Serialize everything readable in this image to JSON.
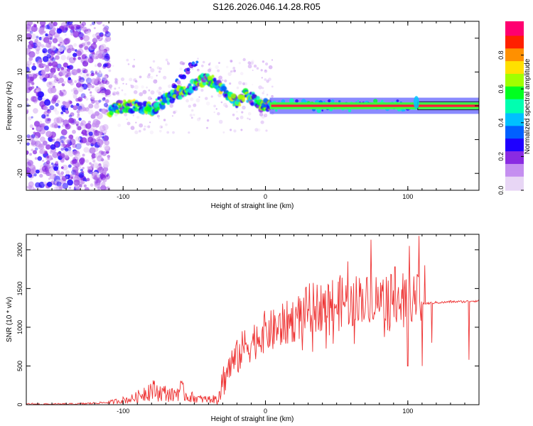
{
  "title": "S126.2026.046.14.28.R05",
  "chart_data": [
    {
      "type": "heatmap",
      "name": "spectrogram",
      "xlabel": "Height of straight line (km)",
      "ylabel": "Frequency (Hz)",
      "xlim": [
        -168,
        150
      ],
      "ylim": [
        -25,
        25
      ],
      "xticks": [
        -100,
        0,
        100
      ],
      "yticks": [
        -20,
        -10,
        0,
        10,
        20
      ],
      "colorbar": {
        "label": "Normalized spectral amplitude",
        "range": [
          0,
          1
        ],
        "ticks": [
          0.0,
          0.2,
          0.4,
          0.6,
          0.8
        ],
        "tick_labels": [
          "0.0",
          "0.2",
          "0.4",
          "0.6",
          "0.8"
        ],
        "colormap": [
          "#e8d6f5",
          "#c58ff0",
          "#8a2be2",
          "#1e00ff",
          "#0060ff",
          "#00c0ff",
          "#00ffb0",
          "#00ff20",
          "#a0ff00",
          "#ffe000",
          "#ff9000",
          "#ff2000",
          "#ff0070"
        ]
      },
      "ridge": [
        {
          "x": -110,
          "y": -2
        },
        {
          "x": -100,
          "y": 0
        },
        {
          "x": -90,
          "y": 0
        },
        {
          "x": -80,
          "y": -1
        },
        {
          "x": -70,
          "y": 2
        },
        {
          "x": -60,
          "y": 4
        },
        {
          "x": -50,
          "y": 6
        },
        {
          "x": -42,
          "y": 8
        },
        {
          "x": -35,
          "y": 7
        },
        {
          "x": -30,
          "y": 5
        },
        {
          "x": -25,
          "y": 2
        },
        {
          "x": -20,
          "y": 1
        },
        {
          "x": -15,
          "y": 3
        },
        {
          "x": -8,
          "y": 2
        },
        {
          "x": -2,
          "y": 0
        },
        {
          "x": 5,
          "y": 0
        },
        {
          "x": 105,
          "y": 0
        },
        {
          "x": 150,
          "y": 0
        }
      ],
      "upper_branch": [
        {
          "x": -65,
          "y": 6
        },
        {
          "x": -58,
          "y": 9
        },
        {
          "x": -52,
          "y": 12
        },
        {
          "x": -48,
          "y": 13
        }
      ]
    },
    {
      "type": "line",
      "name": "snr",
      "xlabel": "Height of straight line (km)",
      "ylabel": "SNR (10 * v/v)",
      "xlim": [
        -168,
        150
      ],
      "ylim": [
        0,
        2200
      ],
      "xticks": [
        -100,
        0,
        100
      ],
      "yticks": [
        0,
        500,
        1000,
        1500,
        2000
      ],
      "color": "#ee3333",
      "series": [
        {
          "x": -168,
          "y": 10
        },
        {
          "x": -150,
          "y": 5
        },
        {
          "x": -130,
          "y": 10
        },
        {
          "x": -110,
          "y": 30
        },
        {
          "x": -100,
          "y": 60
        },
        {
          "x": -95,
          "y": 70
        },
        {
          "x": -90,
          "y": 100
        },
        {
          "x": -85,
          "y": 160
        },
        {
          "x": -80,
          "y": 200
        },
        {
          "x": -75,
          "y": 160
        },
        {
          "x": -70,
          "y": 150
        },
        {
          "x": -65,
          "y": 120
        },
        {
          "x": -60,
          "y": 200
        },
        {
          "x": -55,
          "y": 110
        },
        {
          "x": -50,
          "y": 90
        },
        {
          "x": -45,
          "y": 70
        },
        {
          "x": -40,
          "y": 70
        },
        {
          "x": -35,
          "y": 70
        },
        {
          "x": -30,
          "y": 300
        },
        {
          "x": -25,
          "y": 500
        },
        {
          "x": -20,
          "y": 600
        },
        {
          "x": -15,
          "y": 750
        },
        {
          "x": -10,
          "y": 800
        },
        {
          "x": -5,
          "y": 880
        },
        {
          "x": 0,
          "y": 950
        },
        {
          "x": 5,
          "y": 950
        },
        {
          "x": 10,
          "y": 1000
        },
        {
          "x": 15,
          "y": 1050
        },
        {
          "x": 20,
          "y": 1100
        },
        {
          "x": 25,
          "y": 1150
        },
        {
          "x": 30,
          "y": 1250
        },
        {
          "x": 35,
          "y": 1250
        },
        {
          "x": 40,
          "y": 1280
        },
        {
          "x": 45,
          "y": 1330
        },
        {
          "x": 50,
          "y": 1300
        },
        {
          "x": 55,
          "y": 1350
        },
        {
          "x": 60,
          "y": 1300
        },
        {
          "x": 65,
          "y": 1400
        },
        {
          "x": 70,
          "y": 1350
        },
        {
          "x": 75,
          "y": 1400
        },
        {
          "x": 80,
          "y": 1380
        },
        {
          "x": 85,
          "y": 1400
        },
        {
          "x": 90,
          "y": 1350
        },
        {
          "x": 95,
          "y": 1400
        },
        {
          "x": 100,
          "y": 1350
        },
        {
          "x": 105,
          "y": 1400
        },
        {
          "x": 110,
          "y": 1300
        },
        {
          "x": 115,
          "y": 1310
        },
        {
          "x": 120,
          "y": 1320
        },
        {
          "x": 125,
          "y": 1320
        },
        {
          "x": 130,
          "y": 1330
        },
        {
          "x": 135,
          "y": 1330
        },
        {
          "x": 140,
          "y": 1330
        },
        {
          "x": 145,
          "y": 1340
        },
        {
          "x": 150,
          "y": 1340
        }
      ],
      "spikes": [
        {
          "x": 58,
          "y": 1850
        },
        {
          "x": 63,
          "y": 1100
        },
        {
          "x": 70,
          "y": 1200
        },
        {
          "x": 74,
          "y": 2130
        },
        {
          "x": 80,
          "y": 1200
        },
        {
          "x": 85,
          "y": 1650
        },
        {
          "x": 87,
          "y": 950
        },
        {
          "x": 91,
          "y": 1780
        },
        {
          "x": 97,
          "y": 1000
        },
        {
          "x": 100,
          "y": 500
        },
        {
          "x": 101,
          "y": 2050
        },
        {
          "x": 108,
          "y": 2180
        },
        {
          "x": 110,
          "y": 500
        },
        {
          "x": 112,
          "y": 1800
        },
        {
          "x": 117,
          "y": 800
        },
        {
          "x": 143,
          "y": 580
        }
      ]
    }
  ]
}
